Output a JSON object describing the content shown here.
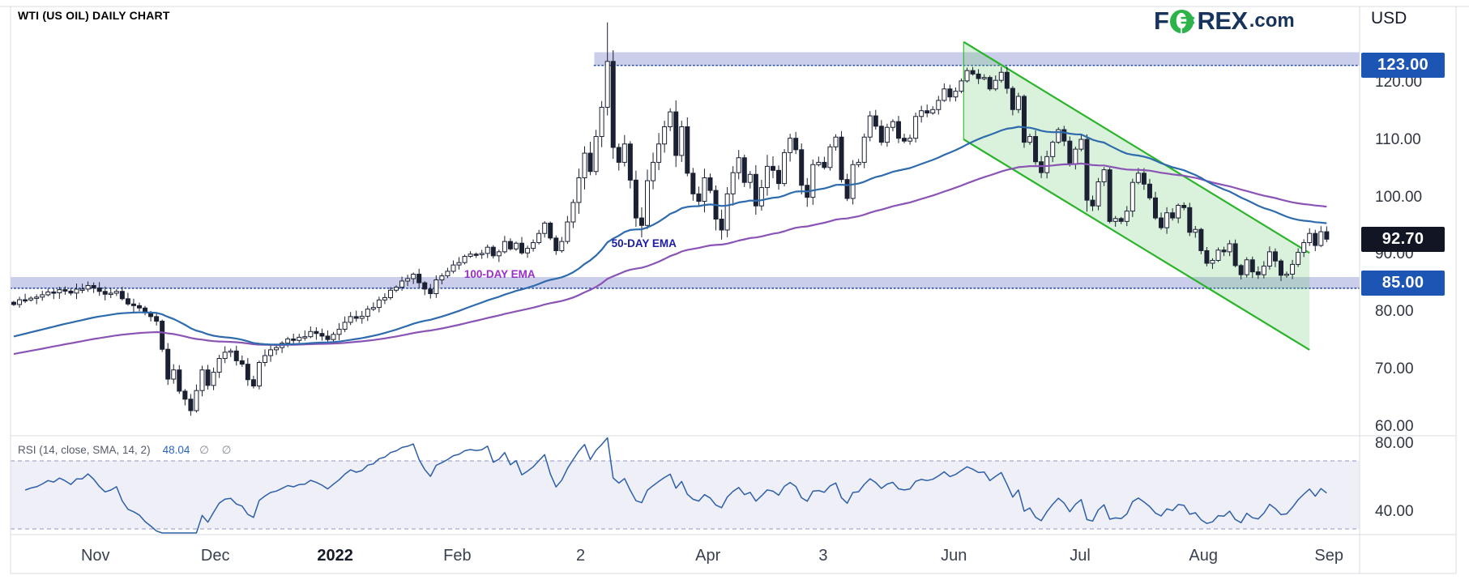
{
  "header": {
    "title": "WTI (US OIL) DAILY CHART",
    "currency_label": "USD",
    "logo": {
      "part1": "F",
      "part2": "REX",
      "suffix": ".com",
      "navy": "#17345c",
      "green": "#2cb34a"
    }
  },
  "price_axis": {
    "ticks": [
      {
        "label": "120.00",
        "value": 120
      },
      {
        "label": "110.00",
        "value": 110
      },
      {
        "label": "100.00",
        "value": 100
      },
      {
        "label": "90.00",
        "value": 90
      },
      {
        "label": "80.00",
        "value": 80
      },
      {
        "label": "70.00",
        "value": 70
      },
      {
        "label": "60.00",
        "value": 60
      }
    ],
    "badges": [
      {
        "label": "123.00",
        "value": 123.0,
        "bg": "#1d55b4",
        "role": "resistance-level"
      },
      {
        "label": "92.70",
        "value": 92.7,
        "bg": "#111524",
        "role": "last-price"
      },
      {
        "label": "85.00",
        "value": 85.0,
        "bg": "#1d55b4",
        "role": "support-level"
      }
    ]
  },
  "time_axis": {
    "labels": [
      {
        "label": "Nov",
        "day": 14.3,
        "bold": false
      },
      {
        "label": "Dec",
        "day": 35.3,
        "bold": false
      },
      {
        "label": "2022",
        "day": 56.3,
        "bold": true
      },
      {
        "label": "Feb",
        "day": 77.7,
        "bold": false
      },
      {
        "label": "2",
        "day": 99.3,
        "bold": false
      },
      {
        "label": "Apr",
        "day": 121.6,
        "bold": false
      },
      {
        "label": "3",
        "day": 141.8,
        "bold": false
      },
      {
        "label": "Jun",
        "day": 164.7,
        "bold": false
      },
      {
        "label": "Jul",
        "day": 186.8,
        "bold": false
      },
      {
        "label": "Aug",
        "day": 208.4,
        "bold": false
      },
      {
        "label": "Sep",
        "day": 230.4,
        "bold": false
      }
    ]
  },
  "rsi_panel": {
    "label": "RSI (14, close, SMA, 14, 2)",
    "value": "48.04",
    "suffix": "∅  ∅",
    "upper_band": 70,
    "lower_band": 30,
    "axis_ticks": [
      {
        "label": "80.00",
        "value": 80
      },
      {
        "label": "40.00",
        "value": 40
      }
    ],
    "line_color": "#2d5fa8",
    "band_fill": "#8f8fd0",
    "dash_color": "#9196c6"
  },
  "annotations": {
    "ema50_label": {
      "text": "50-DAY EMA",
      "color": "#1b1ba8",
      "day": 104.7,
      "price": 92.6
    },
    "ema100_label": {
      "text": "100-DAY EMA",
      "color": "#9a2ecb",
      "day": 78.9,
      "price": 87.2
    }
  },
  "zones": {
    "resistance": {
      "price_low": 123.0,
      "price_high": 125.3,
      "start_day": 101.7,
      "fill": "#6a74c4",
      "line": "#2b4fa8"
    },
    "support": {
      "price_low": 84.15,
      "price_high": 86.1,
      "start_day": 0,
      "fill": "#6a74c4",
      "line": "#2b4fa8"
    }
  },
  "channel": {
    "start_day": 166.4,
    "end_day": 227.0,
    "top_start_price": 127.1,
    "top_end_price": 90.3,
    "bottom_start_price": 110.1,
    "bottom_end_price": 73.4,
    "stroke": "#2ab42a",
    "fill": "rgba(106,201,111,0.25)"
  },
  "chart_data": {
    "type": "candlestick",
    "symbol": "WTI (US Oil)",
    "timeframe": "Daily",
    "x_range": [
      "mid-Oct 2021",
      "early Sep 2022"
    ],
    "ylim": [
      57,
      131
    ],
    "last_close": 92.7,
    "key_levels": {
      "resistance": 123.0,
      "support": 85.0
    },
    "bull_color": "#ffffff",
    "bear_color": "#1b2033",
    "outline": "#1b2033",
    "price_anchors": [
      [
        0,
        81.3
      ],
      [
        2,
        82.1
      ],
      [
        4,
        82.6
      ],
      [
        6,
        83.5
      ],
      [
        8,
        83.9
      ],
      [
        10,
        83.3
      ],
      [
        12,
        84.0
      ],
      [
        14,
        84.2
      ],
      [
        16,
        83.1
      ],
      [
        18,
        83.6
      ],
      [
        20,
        81.4
      ],
      [
        22,
        80.7
      ],
      [
        24,
        79.2
      ],
      [
        25,
        78.4
      ],
      [
        26,
        73.5
      ],
      [
        27,
        68.3
      ],
      [
        28,
        69.9
      ],
      [
        29,
        66.2
      ],
      [
        30,
        64.8
      ],
      [
        31,
        62.8
      ],
      [
        32,
        66.3
      ],
      [
        33,
        69.9
      ],
      [
        34,
        67.2
      ],
      [
        35,
        69.5
      ],
      [
        36,
        71.9
      ],
      [
        38,
        73.2
      ],
      [
        39,
        71.5
      ],
      [
        40,
        70.9
      ],
      [
        41,
        68.2
      ],
      [
        42,
        67.1
      ],
      [
        43,
        71.2
      ],
      [
        44,
        72.4
      ],
      [
        46,
        73.8
      ],
      [
        48,
        75.3
      ],
      [
        50,
        75.6
      ],
      [
        52,
        76.6
      ],
      [
        54,
        75.8
      ],
      [
        55,
        75.2
      ],
      [
        56,
        76.1
      ],
      [
        57,
        77.0
      ],
      [
        58,
        78.2
      ],
      [
        59,
        79.2
      ],
      [
        60,
        78.9
      ],
      [
        62,
        80.5
      ],
      [
        64,
        82.1
      ],
      [
        66,
        83.8
      ],
      [
        68,
        85.4
      ],
      [
        70,
        86.6
      ],
      [
        71,
        85.1
      ],
      [
        72,
        84.0
      ],
      [
        73,
        83.2
      ],
      [
        74,
        85.6
      ],
      [
        75,
        86.3
      ],
      [
        76,
        87.1
      ],
      [
        77,
        88.2
      ],
      [
        79,
        89.7
      ],
      [
        81,
        90.0
      ],
      [
        83,
        91.3
      ],
      [
        84,
        89.8
      ],
      [
        85,
        90.5
      ],
      [
        86,
        92.3
      ],
      [
        87,
        91.0
      ],
      [
        88,
        92.0
      ],
      [
        89,
        90.3
      ],
      [
        90,
        91.1
      ],
      [
        91,
        92.1
      ],
      [
        92,
        93.7
      ],
      [
        93,
        95.5
      ],
      [
        94,
        92.9
      ],
      [
        95,
        90.7
      ],
      [
        96,
        92.3
      ],
      [
        97,
        95.7
      ],
      [
        98,
        99.1
      ],
      [
        99,
        103.4
      ],
      [
        100,
        107.7
      ],
      [
        101,
        104.5
      ],
      [
        102,
        110.6
      ],
      [
        103,
        115.7
      ],
      [
        104,
        123.7
      ],
      [
        105,
        108.7
      ],
      [
        106,
        106.1
      ],
      [
        107,
        109.3
      ],
      [
        108,
        103.0
      ],
      [
        109,
        96.4
      ],
      [
        110,
        95.1
      ],
      [
        111,
        102.9
      ],
      [
        112,
        106.1
      ],
      [
        113,
        109.3
      ],
      [
        114,
        112.3
      ],
      [
        115,
        114.9
      ],
      [
        116,
        107.3
      ],
      [
        117,
        112.3
      ],
      [
        118,
        104.2
      ],
      [
        119,
        100.6
      ],
      [
        120,
        99.3
      ],
      [
        121,
        103.4
      ],
      [
        122,
        101.2
      ],
      [
        123,
        96.2
      ],
      [
        124,
        94.3
      ],
      [
        125,
        100.6
      ],
      [
        126,
        104.3
      ],
      [
        127,
        106.9
      ],
      [
        128,
        102.6
      ],
      [
        129,
        104.0
      ],
      [
        130,
        98.5
      ],
      [
        131,
        101.7
      ],
      [
        132,
        105.4
      ],
      [
        133,
        104.7
      ],
      [
        134,
        102.4
      ],
      [
        135,
        107.8
      ],
      [
        136,
        110.3
      ],
      [
        137,
        108.3
      ],
      [
        138,
        102.1
      ],
      [
        139,
        100.0
      ],
      [
        140,
        105.7
      ],
      [
        141,
        106.1
      ],
      [
        142,
        105.2
      ],
      [
        143,
        108.8
      ],
      [
        144,
        110.5
      ],
      [
        145,
        103.1
      ],
      [
        146,
        99.8
      ],
      [
        147,
        105.7
      ],
      [
        148,
        106.1
      ],
      [
        149,
        110.5
      ],
      [
        150,
        114.2
      ],
      [
        151,
        112.4
      ],
      [
        152,
        109.6
      ],
      [
        153,
        112.2
      ],
      [
        154,
        113.2
      ],
      [
        155,
        110.3
      ],
      [
        156,
        109.8
      ],
      [
        157,
        110.3
      ],
      [
        158,
        114.1
      ],
      [
        159,
        115.1
      ],
      [
        160,
        114.7
      ],
      [
        161,
        115.3
      ],
      [
        162,
        116.9
      ],
      [
        163,
        118.9
      ],
      [
        164,
        117.5
      ],
      [
        165,
        118.5
      ],
      [
        166,
        120.3
      ],
      [
        167,
        122.1
      ],
      [
        168,
        121.5
      ],
      [
        169,
        120.7
      ],
      [
        170,
        120.9
      ],
      [
        171,
        118.9
      ],
      [
        172,
        120.4
      ],
      [
        173,
        121.8
      ],
      [
        174,
        119.0
      ],
      [
        175,
        115.3
      ],
      [
        176,
        117.6
      ],
      [
        177,
        109.6
      ],
      [
        178,
        110.6
      ],
      [
        179,
        106.2
      ],
      [
        180,
        104.3
      ],
      [
        181,
        107.1
      ],
      [
        182,
        109.6
      ],
      [
        183,
        111.8
      ],
      [
        184,
        109.8
      ],
      [
        185,
        105.8
      ],
      [
        186,
        108.4
      ],
      [
        187,
        110.1
      ],
      [
        188,
        99.5
      ],
      [
        189,
        98.5
      ],
      [
        190,
        102.7
      ],
      [
        191,
        104.8
      ],
      [
        192,
        95.8
      ],
      [
        193,
        96.3
      ],
      [
        194,
        95.8
      ],
      [
        195,
        97.6
      ],
      [
        196,
        102.6
      ],
      [
        197,
        104.2
      ],
      [
        198,
        102.3
      ],
      [
        199,
        99.9
      ],
      [
        200,
        96.4
      ],
      [
        201,
        94.7
      ],
      [
        202,
        97.3
      ],
      [
        203,
        96.4
      ],
      [
        204,
        98.6
      ],
      [
        205,
        98.2
      ],
      [
        206,
        93.9
      ],
      [
        207,
        94.4
      ],
      [
        208,
        90.7
      ],
      [
        209,
        88.5
      ],
      [
        210,
        89.0
      ],
      [
        211,
        90.8
      ],
      [
        212,
        90.5
      ],
      [
        213,
        91.9
      ],
      [
        214,
        88.1
      ],
      [
        215,
        86.5
      ],
      [
        216,
        89.1
      ],
      [
        217,
        87.0
      ],
      [
        218,
        86.5
      ],
      [
        219,
        88.0
      ],
      [
        220,
        90.5
      ],
      [
        221,
        88.9
      ],
      [
        222,
        86.4
      ],
      [
        223,
        86.6
      ],
      [
        224,
        88.3
      ],
      [
        225,
        90.4
      ],
      [
        226,
        92.1
      ],
      [
        227,
        93.7
      ],
      [
        228,
        91.6
      ],
      [
        229,
        94.0
      ],
      [
        230,
        92.7
      ]
    ],
    "wick_overrides": {
      "27": [
        74.0,
        67.4
      ],
      "31": [
        63.2,
        62.4
      ],
      "104": [
        130.5,
        116.8
      ],
      "188": [
        108.0,
        97.5
      ],
      "222": [
        87.5,
        85.4
      ]
    },
    "emas": [
      {
        "name": "50-DAY EMA",
        "period": 50,
        "color": "#2e6bad",
        "seed": 75.5
      },
      {
        "name": "100-DAY EMA",
        "period": 100,
        "color": "#8a54b5",
        "seed": 72.5
      }
    ],
    "rsi": {
      "period": 14,
      "current": 48.04
    }
  }
}
